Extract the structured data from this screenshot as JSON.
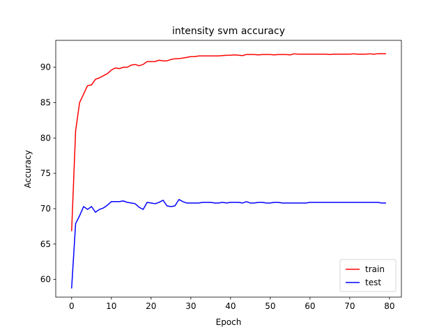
{
  "chart_data": {
    "type": "line",
    "title": "intensity svm accuracy",
    "xlabel": "Epoch",
    "ylabel": "Accuracy",
    "xlim": [
      -4,
      83
    ],
    "ylim": [
      57.5,
      93.8
    ],
    "xticks": [
      0,
      10,
      20,
      30,
      40,
      50,
      60,
      70,
      80
    ],
    "yticks": [
      60,
      65,
      70,
      75,
      80,
      85,
      90
    ],
    "grid": false,
    "legend_position": "lower-right",
    "series": [
      {
        "name": "train",
        "color": "#ff0000",
        "x": [
          0,
          1,
          2,
          3,
          4,
          5,
          6,
          7,
          8,
          9,
          10,
          11,
          12,
          13,
          14,
          15,
          16,
          17,
          18,
          19,
          20,
          21,
          22,
          23,
          24,
          25,
          26,
          27,
          28,
          29,
          30,
          31,
          32,
          33,
          34,
          35,
          36,
          37,
          38,
          39,
          40,
          41,
          42,
          43,
          44,
          45,
          46,
          47,
          48,
          49,
          50,
          51,
          52,
          53,
          54,
          55,
          56,
          57,
          58,
          59,
          60,
          61,
          62,
          63,
          64,
          65,
          66,
          67,
          68,
          69,
          70,
          71,
          72,
          73,
          74,
          75,
          76,
          77,
          78,
          79
        ],
        "values": [
          66.9,
          81.0,
          85.0,
          86.2,
          87.4,
          87.5,
          88.3,
          88.5,
          88.8,
          89.1,
          89.6,
          89.9,
          89.8,
          90.0,
          90.0,
          90.3,
          90.4,
          90.2,
          90.4,
          90.8,
          90.8,
          90.8,
          91.0,
          90.9,
          90.9,
          91.1,
          91.2,
          91.2,
          91.3,
          91.4,
          91.5,
          91.5,
          91.6,
          91.6,
          91.6,
          91.6,
          91.6,
          91.6,
          91.65,
          91.7,
          91.7,
          91.75,
          91.7,
          91.65,
          91.8,
          91.8,
          91.8,
          91.75,
          91.8,
          91.8,
          91.8,
          91.75,
          91.8,
          91.8,
          91.8,
          91.75,
          91.9,
          91.85,
          91.85,
          91.85,
          91.85,
          91.85,
          91.85,
          91.85,
          91.85,
          91.8,
          91.85,
          91.85,
          91.85,
          91.85,
          91.85,
          91.9,
          91.85,
          91.85,
          91.85,
          91.9,
          91.85,
          91.9,
          91.9,
          91.9
        ]
      },
      {
        "name": "test",
        "color": "#0000ff",
        "x": [
          0,
          1,
          2,
          3,
          4,
          5,
          6,
          7,
          8,
          9,
          10,
          11,
          12,
          13,
          14,
          15,
          16,
          17,
          18,
          19,
          20,
          21,
          22,
          23,
          24,
          25,
          26,
          27,
          28,
          29,
          30,
          31,
          32,
          33,
          34,
          35,
          36,
          37,
          38,
          39,
          40,
          41,
          42,
          43,
          44,
          45,
          46,
          47,
          48,
          49,
          50,
          51,
          52,
          53,
          54,
          55,
          56,
          57,
          58,
          59,
          60,
          61,
          62,
          63,
          64,
          65,
          66,
          67,
          68,
          69,
          70,
          71,
          72,
          73,
          74,
          75,
          76,
          77,
          78,
          79
        ],
        "values": [
          58.8,
          67.9,
          69.0,
          70.3,
          69.9,
          70.3,
          69.5,
          69.9,
          70.1,
          70.5,
          71.0,
          71.0,
          71.0,
          71.1,
          70.9,
          70.8,
          70.7,
          70.2,
          69.9,
          70.9,
          70.8,
          70.7,
          70.9,
          71.2,
          70.4,
          70.3,
          70.4,
          71.3,
          71.0,
          70.8,
          70.8,
          70.8,
          70.8,
          70.9,
          70.9,
          70.9,
          70.8,
          70.8,
          70.9,
          70.8,
          70.9,
          70.9,
          70.9,
          70.8,
          71.0,
          70.8,
          70.8,
          70.9,
          70.9,
          70.8,
          70.8,
          70.9,
          70.9,
          70.8,
          70.8,
          70.8,
          70.8,
          70.8,
          70.8,
          70.8,
          70.9,
          70.9,
          70.9,
          70.9,
          70.9,
          70.9,
          70.9,
          70.9,
          70.9,
          70.9,
          70.9,
          70.9,
          70.9,
          70.9,
          70.9,
          70.9,
          70.9,
          70.9,
          70.8,
          70.8
        ]
      }
    ]
  }
}
